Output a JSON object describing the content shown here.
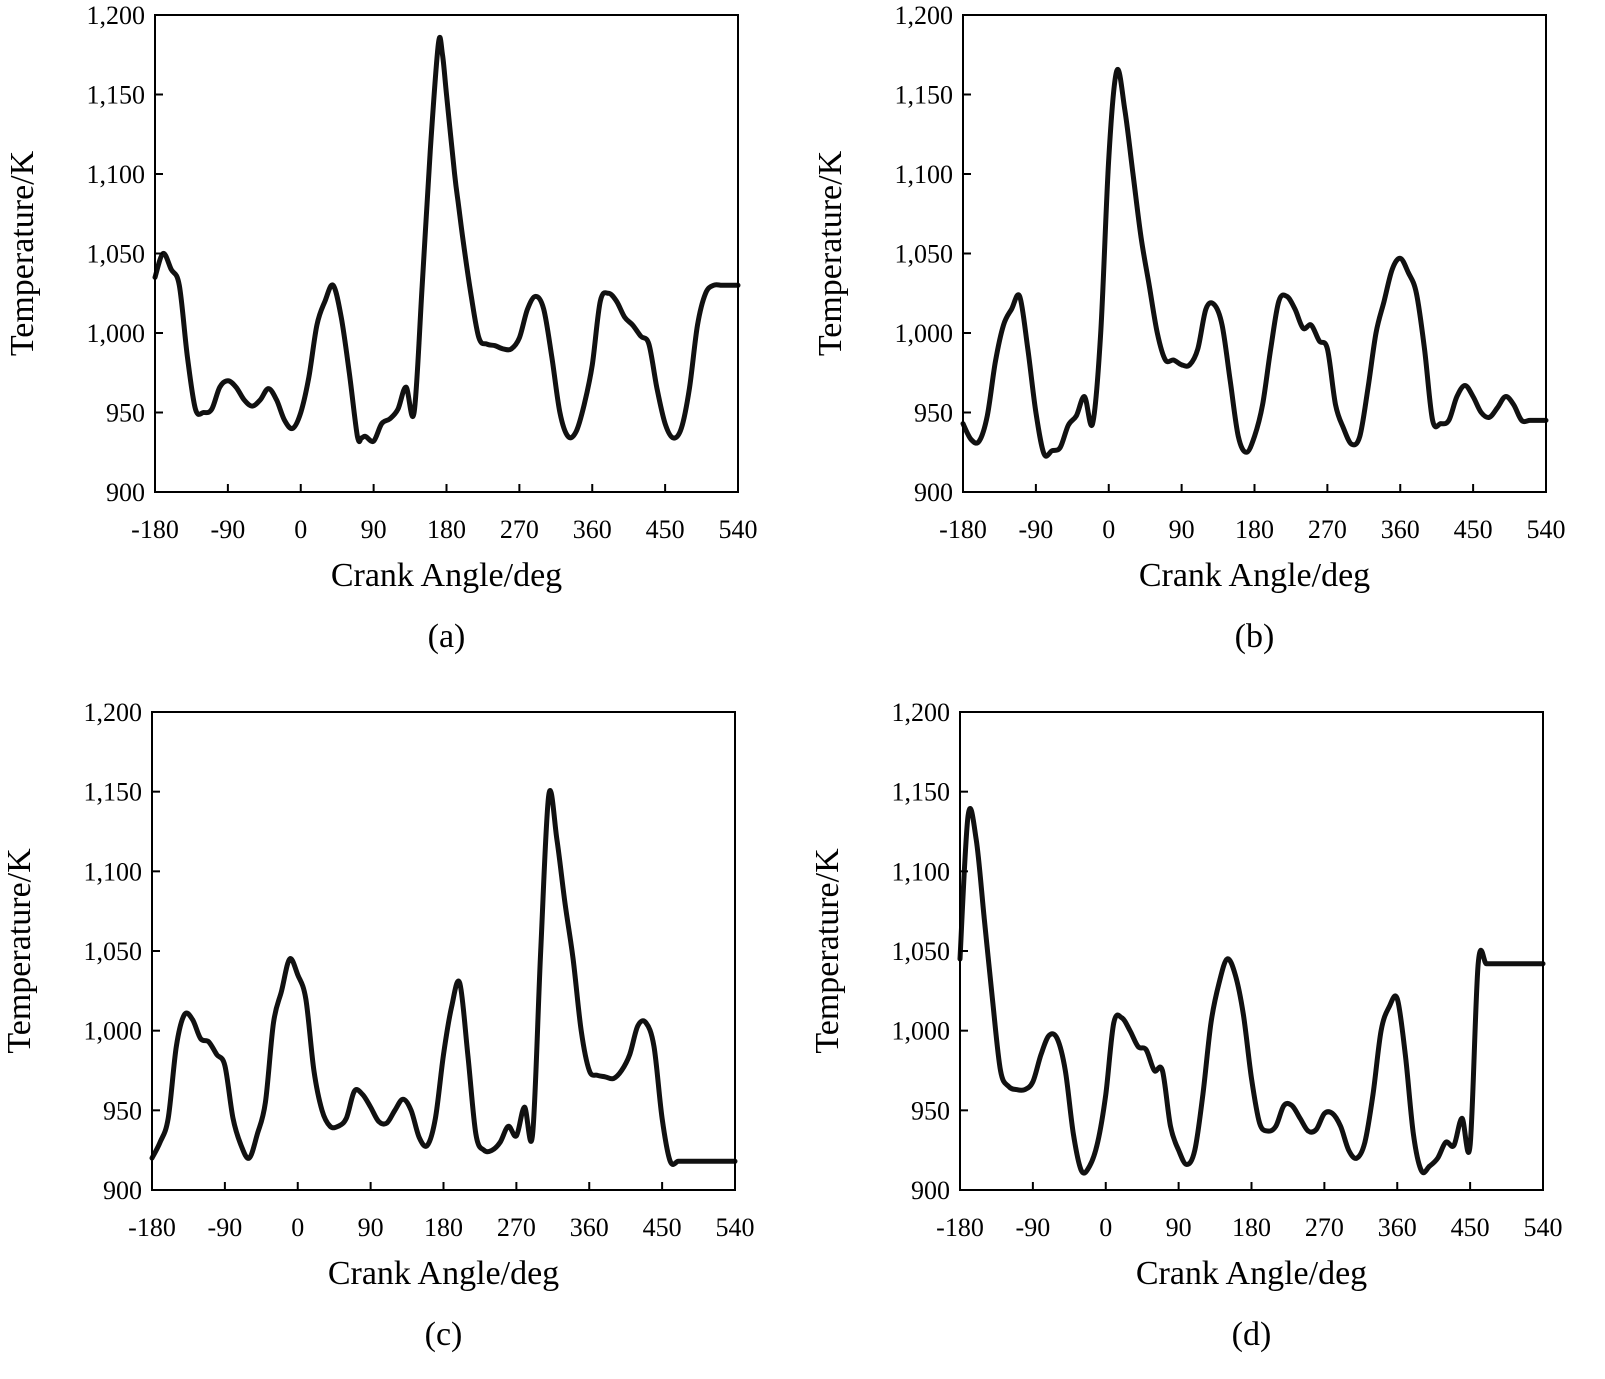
{
  "chart_data": [
    {
      "type": "line",
      "panel_label": "(a)",
      "xlabel": "Crank Angle/deg",
      "ylabel": "Temperature/K",
      "xlim": [
        -180,
        540
      ],
      "ylim": [
        900,
        1200
      ],
      "xticks": [
        -180,
        -90,
        0,
        90,
        180,
        270,
        360,
        450,
        540
      ],
      "xtick_labels": [
        "-180",
        "-90",
        "0",
        "90",
        "180",
        "270",
        "360",
        "450",
        "540"
      ],
      "yticks": [
        900,
        950,
        1000,
        1050,
        1100,
        1150,
        1200
      ],
      "ytick_labels": [
        "900",
        "950",
        "1,000",
        "1,050",
        "1,100",
        "1,150",
        "1,200"
      ],
      "grid": false,
      "series": [
        {
          "x": [
            -180,
            -170,
            -160,
            -150,
            -140,
            -130,
            -120,
            -110,
            -100,
            -90,
            -80,
            -70,
            -60,
            -50,
            -40,
            -30,
            -20,
            -10,
            0,
            10,
            20,
            30,
            40,
            50,
            60,
            70,
            75,
            80,
            90,
            100,
            110,
            120,
            130,
            140,
            150,
            160,
            170,
            175,
            180,
            190,
            195,
            200,
            210,
            220,
            230,
            240,
            250,
            260,
            270,
            280,
            290,
            300,
            310,
            320,
            330,
            340,
            350,
            360,
            370,
            380,
            390,
            400,
            410,
            420,
            430,
            440,
            450,
            460,
            470,
            480,
            490,
            500,
            510,
            520,
            530,
            540
          ],
          "values": [
            1035,
            1050,
            1040,
            1030,
            985,
            952,
            950,
            952,
            966,
            970,
            966,
            958,
            954,
            958,
            965,
            958,
            945,
            940,
            950,
            972,
            1005,
            1020,
            1030,
            1010,
            975,
            935,
            934,
            935,
            932,
            943,
            946,
            952,
            966,
            950,
            1030,
            1115,
            1182,
            1175,
            1150,
            1100,
            1080,
            1060,
            1025,
            997,
            993,
            992,
            990,
            990,
            997,
            1015,
            1023,
            1015,
            985,
            950,
            935,
            938,
            955,
            980,
            1020,
            1025,
            1020,
            1010,
            1005,
            998,
            993,
            965,
            943,
            934,
            940,
            965,
            1005,
            1025,
            1030,
            1030,
            1030,
            1030
          ]
        }
      ]
    },
    {
      "type": "line",
      "panel_label": "(b)",
      "xlabel": "Crank Angle/deg",
      "ylabel": "Temperature/K",
      "xlim": [
        -180,
        540
      ],
      "ylim": [
        900,
        1200
      ],
      "xticks": [
        -180,
        -90,
        0,
        90,
        180,
        270,
        360,
        450,
        540
      ],
      "xtick_labels": [
        "-180",
        "-90",
        "0",
        "90",
        "180",
        "270",
        "360",
        "450",
        "540"
      ],
      "yticks": [
        900,
        950,
        1000,
        1050,
        1100,
        1150,
        1200
      ],
      "ytick_labels": [
        "900",
        "950",
        "1,000",
        "1,050",
        "1,100",
        "1,150",
        "1,200"
      ],
      "grid": false,
      "series": [
        {
          "x": [
            -180,
            -170,
            -160,
            -150,
            -140,
            -130,
            -120,
            -110,
            -100,
            -90,
            -80,
            -70,
            -60,
            -50,
            -40,
            -30,
            -20,
            -10,
            0,
            10,
            20,
            30,
            40,
            50,
            60,
            70,
            80,
            90,
            100,
            110,
            120,
            130,
            140,
            150,
            160,
            170,
            180,
            190,
            200,
            210,
            220,
            230,
            240,
            250,
            260,
            270,
            280,
            290,
            300,
            310,
            320,
            330,
            340,
            350,
            360,
            370,
            380,
            390,
            400,
            410,
            420,
            430,
            440,
            450,
            460,
            470,
            480,
            490,
            500,
            510,
            520,
            530,
            540
          ],
          "values": [
            943,
            933,
            932,
            948,
            982,
            1005,
            1015,
            1023,
            990,
            950,
            924,
            926,
            928,
            942,
            948,
            960,
            943,
            1000,
            1110,
            1165,
            1140,
            1100,
            1060,
            1030,
            1000,
            983,
            983,
            980,
            980,
            990,
            1015,
            1018,
            1005,
            970,
            935,
            925,
            935,
            955,
            990,
            1020,
            1023,
            1015,
            1003,
            1005,
            995,
            990,
            955,
            940,
            930,
            935,
            965,
            1000,
            1020,
            1040,
            1047,
            1038,
            1025,
            990,
            945,
            943,
            945,
            960,
            967,
            960,
            950,
            947,
            953,
            960,
            955,
            945,
            945,
            945,
            945
          ]
        }
      ]
    },
    {
      "type": "line",
      "panel_label": "(c)",
      "xlabel": "Crank Angle/deg",
      "ylabel": "Temperature/K",
      "xlim": [
        -180,
        540
      ],
      "ylim": [
        900,
        1200
      ],
      "xticks": [
        -180,
        -90,
        0,
        90,
        180,
        270,
        360,
        450,
        540
      ],
      "xtick_labels": [
        "-180",
        "-90",
        "0",
        "90",
        "180",
        "270",
        "360",
        "450",
        "540"
      ],
      "yticks": [
        900,
        950,
        1000,
        1050,
        1100,
        1150,
        1200
      ],
      "ytick_labels": [
        "900",
        "950",
        "1,000",
        "1,050",
        "1,100",
        "1,150",
        "1,200"
      ],
      "grid": false,
      "series": [
        {
          "x": [
            -180,
            -170,
            -160,
            -150,
            -140,
            -130,
            -120,
            -110,
            -100,
            -90,
            -80,
            -70,
            -60,
            -50,
            -40,
            -30,
            -20,
            -10,
            0,
            10,
            20,
            30,
            40,
            50,
            60,
            70,
            80,
            90,
            100,
            110,
            120,
            130,
            140,
            150,
            160,
            170,
            180,
            190,
            200,
            210,
            220,
            230,
            240,
            250,
            260,
            270,
            280,
            290,
            300,
            310,
            320,
            330,
            340,
            350,
            360,
            370,
            380,
            390,
            400,
            410,
            420,
            430,
            440,
            450,
            460,
            470,
            480,
            490,
            500,
            510,
            520,
            530,
            540
          ],
          "values": [
            920,
            930,
            945,
            990,
            1010,
            1007,
            995,
            993,
            985,
            978,
            945,
            928,
            920,
            935,
            955,
            1005,
            1025,
            1045,
            1035,
            1020,
            975,
            950,
            940,
            940,
            945,
            962,
            960,
            952,
            943,
            942,
            950,
            957,
            950,
            933,
            928,
            945,
            985,
            1015,
            1030,
            985,
            935,
            925,
            925,
            930,
            940,
            934,
            952,
            935,
            1050,
            1148,
            1120,
            1080,
            1045,
            1000,
            975,
            972,
            971,
            970,
            975,
            985,
            1003,
            1005,
            990,
            945,
            918,
            918,
            918,
            918,
            918,
            918,
            918,
            918,
            918
          ]
        }
      ]
    },
    {
      "type": "line",
      "panel_label": "(d)",
      "xlabel": "Crank Angle/deg",
      "ylabel": "Temperature/K",
      "xlim": [
        -180,
        540
      ],
      "ylim": [
        900,
        1200
      ],
      "xticks": [
        -180,
        -90,
        0,
        90,
        180,
        270,
        360,
        450,
        540
      ],
      "xtick_labels": [
        "-180",
        "-90",
        "0",
        "90",
        "180",
        "270",
        "360",
        "450",
        "540"
      ],
      "yticks": [
        900,
        950,
        1000,
        1050,
        1100,
        1150,
        1200
      ],
      "ytick_labels": [
        "900",
        "950",
        "1,000",
        "1,050",
        "1,100",
        "1,150",
        "1,200"
      ],
      "grid": false,
      "series": [
        {
          "x": [
            -180,
            -170,
            -160,
            -150,
            -140,
            -130,
            -120,
            -110,
            -100,
            -90,
            -80,
            -70,
            -60,
            -50,
            -40,
            -30,
            -20,
            -10,
            0,
            10,
            20,
            30,
            40,
            50,
            60,
            70,
            80,
            90,
            100,
            110,
            120,
            130,
            140,
            150,
            160,
            170,
            180,
            190,
            200,
            210,
            220,
            230,
            240,
            250,
            260,
            270,
            280,
            290,
            300,
            310,
            320,
            330,
            340,
            350,
            360,
            370,
            380,
            390,
            400,
            410,
            420,
            430,
            440,
            450,
            460,
            470,
            480,
            490,
            500,
            510,
            520,
            530,
            540
          ],
          "values": [
            1045,
            1135,
            1120,
            1070,
            1020,
            975,
            965,
            963,
            963,
            968,
            985,
            997,
            995,
            975,
            935,
            912,
            915,
            930,
            960,
            1005,
            1008,
            1000,
            990,
            988,
            975,
            975,
            940,
            925,
            916,
            925,
            960,
            1005,
            1030,
            1045,
            1035,
            1010,
            970,
            942,
            937,
            940,
            953,
            953,
            945,
            937,
            938,
            948,
            948,
            940,
            925,
            920,
            930,
            960,
            1000,
            1015,
            1020,
            985,
            935,
            912,
            915,
            920,
            930,
            928,
            945,
            928,
            1042,
            1042,
            1042,
            1042,
            1042,
            1042,
            1042,
            1042,
            1042
          ]
        }
      ]
    }
  ]
}
